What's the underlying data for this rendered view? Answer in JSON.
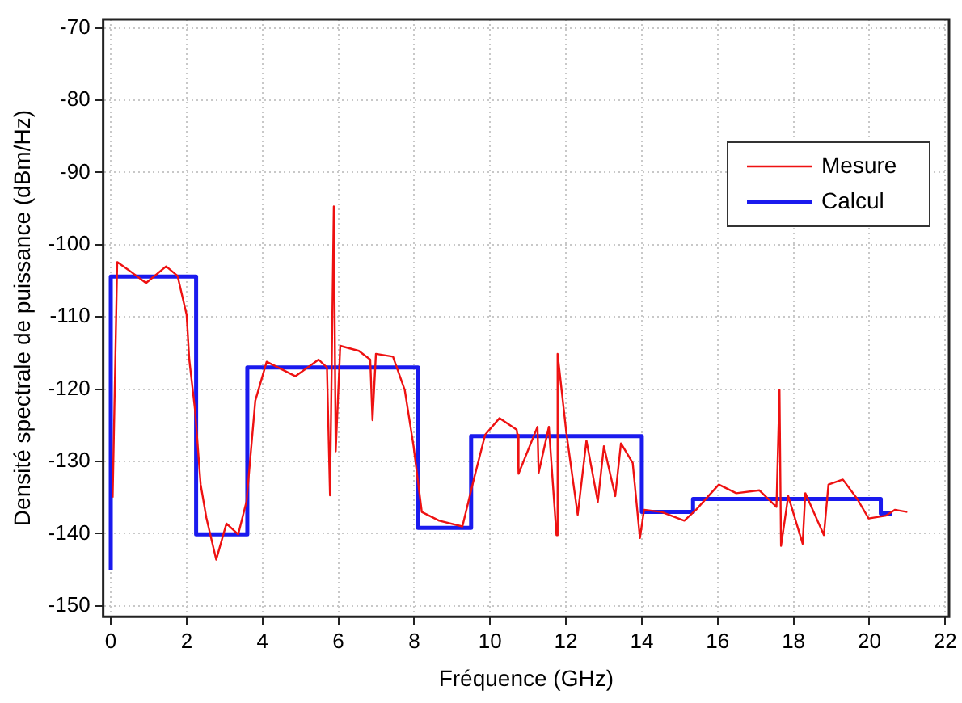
{
  "chart_data": {
    "type": "line",
    "xlabel": "Fréquence (GHz)",
    "ylabel": "Densité spectrale de puissance (dBm/Hz)",
    "xlim": [
      -0.2,
      22.1
    ],
    "xticks": [
      0,
      2,
      4,
      6,
      8,
      10,
      12,
      14,
      16,
      18,
      20,
      22
    ],
    "ylim": [
      -151.5,
      -68.8
    ],
    "yticks": [
      -150,
      -140,
      -130,
      -120,
      -110,
      -100,
      -90,
      -80,
      -70
    ],
    "grid": true,
    "legend": "top right",
    "marker": "none",
    "line_style": "solid",
    "series": [
      {
        "name": "Mesure",
        "color": "#ee1111",
        "x": [
          0.05,
          0.17,
          0.47,
          0.93,
          1.46,
          1.76,
          2.0,
          2.07,
          2.22,
          2.37,
          2.52,
          2.78,
          3.05,
          3.36,
          3.58,
          3.81,
          4.11,
          4.87,
          5.48,
          5.7,
          5.78,
          5.88,
          5.93,
          6.05,
          6.54,
          6.84,
          6.9,
          6.99,
          7.44,
          7.75,
          7.98,
          8.2,
          8.66,
          9.27,
          9.57,
          9.87,
          10.25,
          10.7,
          10.72,
          10.75,
          11.25,
          11.28,
          11.55,
          11.75,
          11.78,
          12.01,
          12.31,
          12.54,
          12.84,
          13.0,
          13.3,
          13.45,
          13.76,
          13.95,
          14.06,
          14.52,
          15.12,
          15.43,
          16.03,
          16.49,
          17.1,
          17.55,
          17.63,
          17.67,
          17.86,
          18.24,
          18.31,
          18.8,
          18.92,
          19.3,
          19.68,
          19.98,
          20.44,
          20.67,
          21.0
        ],
        "values": [
          -135,
          -102.4,
          -103.5,
          -105.3,
          -103,
          -104.3,
          -109.7,
          -115.9,
          -122.8,
          -133.2,
          -137.8,
          -143.6,
          -138.6,
          -140.1,
          -135.5,
          -121.6,
          -116.2,
          -118.2,
          -115.9,
          -117,
          -134.7,
          -94.7,
          -128.6,
          -114,
          -114.7,
          -115.9,
          -124.3,
          -115.1,
          -115.5,
          -120.1,
          -127.8,
          -137,
          -138.2,
          -139,
          -132.5,
          -126.3,
          -124,
          -125.6,
          -126.3,
          -131.7,
          -125.2,
          -131.6,
          -125.2,
          -140.2,
          -115.1,
          -126,
          -137.4,
          -127.1,
          -135.6,
          -127.9,
          -134.8,
          -127.5,
          -130.2,
          -140.6,
          -136.7,
          -137,
          -138.2,
          -136.7,
          -133.2,
          -134.4,
          -134,
          -136.3,
          -120.1,
          -141.7,
          -134.8,
          -141.4,
          -134.4,
          -140.2,
          -133.2,
          -132.5,
          -135.2,
          -137.9,
          -137.5,
          -136.7,
          -137
        ]
      },
      {
        "name": "Calcul",
        "color": "#1a1aee",
        "x": [
          0,
          0,
          2.25,
          2.25,
          3.6,
          3.6,
          8.1,
          8.1,
          9.5,
          9.5,
          14.0,
          14.0,
          15.35,
          15.35,
          20.3,
          20.3,
          20.6
        ],
        "values": [
          -145,
          -104.4,
          -104.4,
          -140.1,
          -140.1,
          -117,
          -117,
          -139.2,
          -139.2,
          -126.5,
          -126.5,
          -137,
          -137,
          -135.2,
          -135.2,
          -137.2,
          -137.2
        ]
      }
    ]
  }
}
